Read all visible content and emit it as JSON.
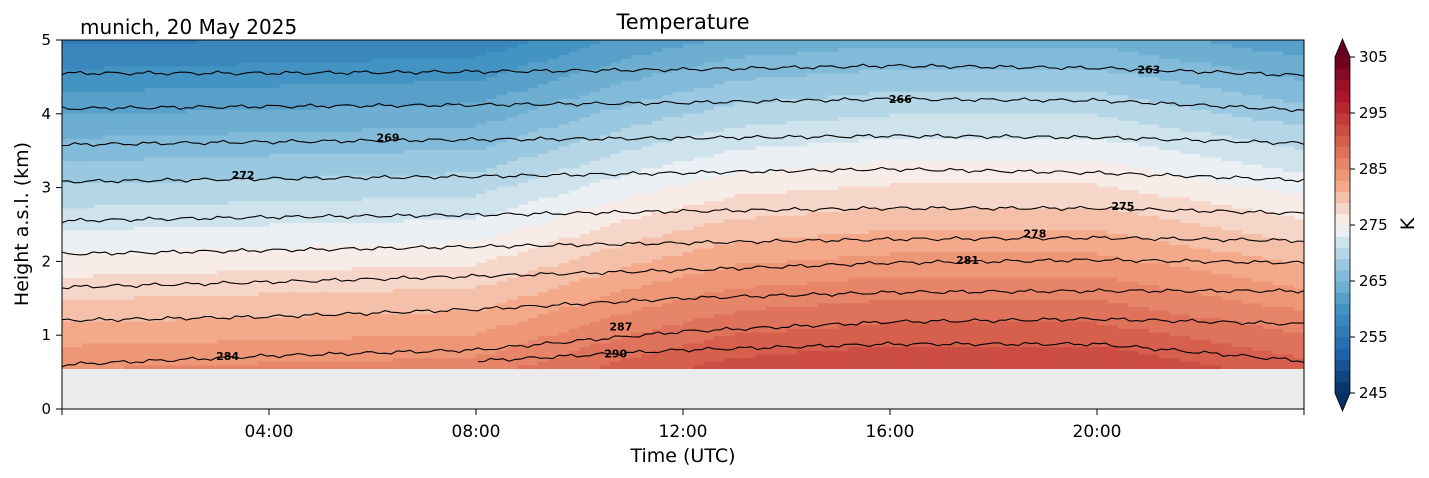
{
  "chart_data": {
    "type": "heatmap",
    "title": "Temperature",
    "subtitle": "munich, 20 May 2025",
    "xlabel": "Time (UTC)",
    "ylabel": "Height a.s.l. (km)",
    "x_range_hours": [
      0,
      24
    ],
    "xlim": [
      "00:00",
      "24:00"
    ],
    "ylim": [
      0,
      5
    ],
    "x_ticks": [
      "04:00",
      "08:00",
      "12:00",
      "16:00",
      "20:00"
    ],
    "x_tick_hours": [
      4,
      8,
      12,
      16,
      20
    ],
    "y_ticks": [
      "0",
      "1",
      "2",
      "3",
      "4",
      "5"
    ],
    "y_tick_values": [
      0,
      1,
      2,
      3,
      4,
      5
    ],
    "data_bottom_km": 0.55,
    "colorbar": {
      "label": "K",
      "colormap": "RdBu_r",
      "range": [
        245,
        305
      ],
      "ticks": [
        "245",
        "255",
        "265",
        "275",
        "285",
        "295",
        "305"
      ],
      "tick_values": [
        245,
        255,
        265,
        275,
        285,
        295,
        305
      ],
      "extend": "both"
    },
    "contour_levels": [
      263,
      266,
      269,
      272,
      275,
      278,
      281,
      284,
      287,
      290
    ],
    "contour_labels": [
      {
        "text": "263",
        "value": 263,
        "hour": 21.0,
        "km": 4.6
      },
      {
        "text": "266",
        "value": 266,
        "hour": 16.2,
        "km": 4.2
      },
      {
        "text": "269",
        "value": 269,
        "hour": 6.3,
        "km": 3.68
      },
      {
        "text": "272",
        "value": 272,
        "hour": 3.5,
        "km": 3.17
      },
      {
        "text": "275",
        "value": 275,
        "hour": 20.5,
        "km": 2.75
      },
      {
        "text": "278",
        "value": 278,
        "hour": 18.8,
        "km": 2.38
      },
      {
        "text": "281",
        "value": 281,
        "hour": 17.5,
        "km": 2.02
      },
      {
        "text": "284",
        "value": 284,
        "hour": 3.2,
        "km": 0.72
      },
      {
        "text": "287",
        "value": 287,
        "hour": 10.8,
        "km": 1.12
      },
      {
        "text": "290",
        "value": 290,
        "hour": 10.7,
        "km": 0.75
      }
    ],
    "isotherm_profiles_hour": [
      0,
      4,
      8,
      12,
      16,
      20,
      24
    ],
    "isotherm_profiles_km": {
      "263": [
        4.55,
        4.55,
        4.57,
        4.6,
        4.65,
        4.62,
        4.52
      ],
      "266": [
        4.07,
        4.1,
        4.12,
        4.15,
        4.2,
        4.18,
        4.05
      ],
      "269": [
        3.58,
        3.62,
        3.65,
        3.67,
        3.7,
        3.68,
        3.6
      ],
      "272": [
        3.08,
        3.12,
        3.15,
        3.2,
        3.25,
        3.2,
        3.1
      ],
      "275": [
        2.55,
        2.6,
        2.63,
        2.68,
        2.72,
        2.72,
        2.65
      ],
      "278": [
        2.1,
        2.15,
        2.2,
        2.25,
        2.3,
        2.32,
        2.28
      ],
      "281": [
        1.65,
        1.72,
        1.8,
        1.88,
        1.98,
        2.02,
        1.98
      ],
      "284": [
        1.2,
        1.25,
        1.35,
        1.5,
        1.58,
        1.6,
        1.6
      ],
      "287": [
        0.6,
        0.72,
        0.8,
        1.05,
        1.18,
        1.22,
        1.15
      ],
      "290": [
        null,
        null,
        0.65,
        0.8,
        0.88,
        0.88,
        0.65
      ]
    },
    "temperature_profiles_hour": [
      0,
      4,
      8,
      11,
      13,
      16,
      20,
      24
    ],
    "temperature_profiles_heights_km": [
      0.55,
      5.0
    ],
    "surface_temperature_K": [
      285.0,
      285.5,
      286.0,
      290.0,
      292.0,
      293.0,
      293.0,
      290.0
    ],
    "lapse_rate_K_per_km": 6.4
  }
}
